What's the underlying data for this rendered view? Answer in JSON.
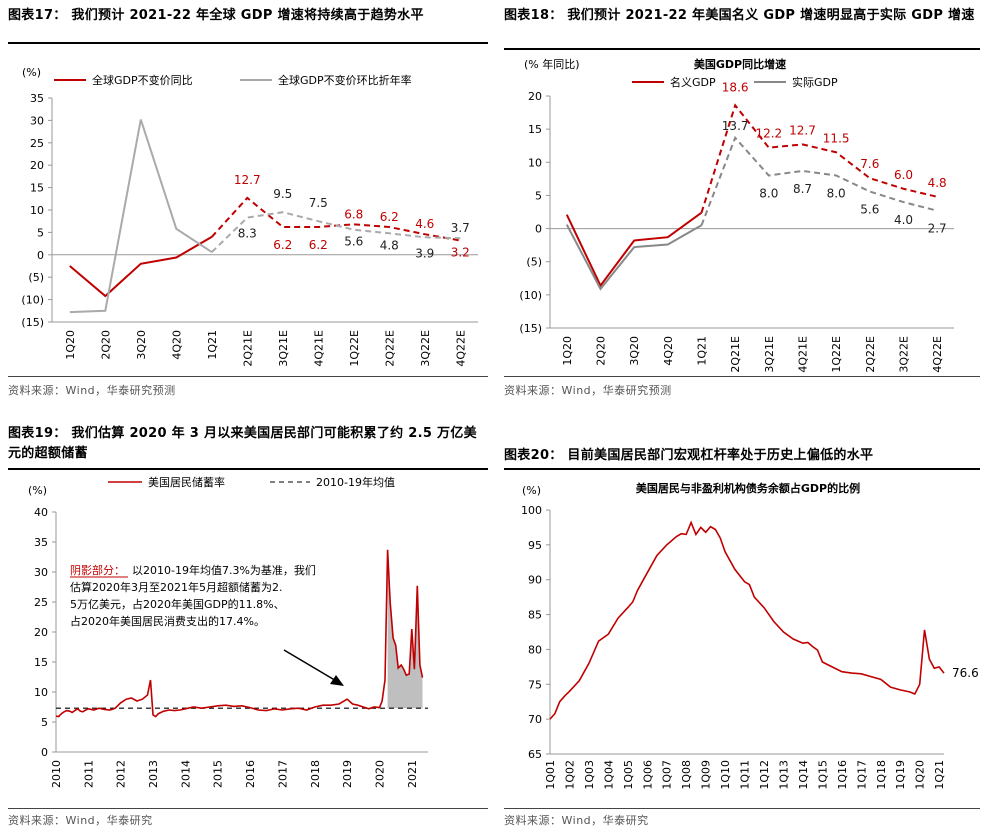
{
  "charts": [
    {
      "title": "图表17：  我们预计 2021-22 年全球 GDP 增速将持续高于趋势水平",
      "source": "资料来源：Wind，华泰研究预测",
      "chart_data": {
        "type": "line",
        "yunit": "(%)",
        "ylim": [
          -15,
          35
        ],
        "yticks": [
          35,
          30,
          25,
          20,
          15,
          10,
          5,
          0,
          -5,
          -10,
          -15
        ],
        "ytick_labels": [
          "35",
          "30",
          "25",
          "20",
          "15",
          "10",
          "5",
          "0",
          "(5)",
          "(10)",
          "(15)"
        ],
        "categories": [
          "1Q20",
          "2Q20",
          "3Q20",
          "4Q20",
          "1Q21",
          "2Q21E",
          "3Q21E",
          "4Q21E",
          "1Q22E",
          "2Q22E",
          "3Q22E",
          "4Q22E"
        ],
        "legend_position": "top",
        "series": [
          {
            "name": "全球GDP不变价同比",
            "color": "#c00000",
            "values": [
              -2.5,
              -9.2,
              -2.0,
              -0.6,
              4.0,
              12.7,
              6.2,
              6.2,
              6.8,
              6.2,
              4.6,
              3.2
            ],
            "forecast_from": 4,
            "labels": [
              "",
              "",
              "",
              "",
              "",
              "12.7",
              "6.2",
              "6.2",
              "6.8",
              "6.2",
              "4.6",
              "3.2"
            ],
            "label_dy": [
              0,
              0,
              0,
              0,
              0,
              -18,
              18,
              18,
              -10,
              -10,
              -10,
              12
            ]
          },
          {
            "name": "全球GDP不变价环比折年率",
            "color": "#aaaaaa",
            "values": [
              -12.8,
              -12.5,
              30.2,
              5.8,
              0.6,
              8.3,
              9.5,
              7.5,
              5.6,
              4.8,
              3.9,
              3.7
            ],
            "forecast_from": 4,
            "labels": [
              "",
              "",
              "",
              "",
              "",
              "8.3",
              "9.5",
              "7.5",
              "5.6",
              "4.8",
              "3.9",
              "3.7"
            ],
            "label_dy": [
              0,
              0,
              0,
              0,
              0,
              16,
              -18,
              -18,
              12,
              12,
              16,
              -10
            ]
          }
        ]
      }
    },
    {
      "title": "图表18：  我们预计 2021-22 年美国名义 GDP 增速明显高于实际 GDP 增速",
      "source": "资料来源：Wind，华泰研究预测",
      "chart_data": {
        "type": "line",
        "subtitle": "美国GDP同比增速",
        "yunit": "(% 年同比)",
        "ylim": [
          -15,
          20
        ],
        "yticks": [
          20,
          15,
          10,
          5,
          0,
          -5,
          -10,
          -15
        ],
        "ytick_labels": [
          "20",
          "15",
          "10",
          "5",
          "0",
          "(5)",
          "(10)",
          "(15)"
        ],
        "categories": [
          "1Q20",
          "2Q20",
          "3Q20",
          "4Q20",
          "1Q21",
          "2Q21E",
          "3Q21E",
          "4Q21E",
          "1Q22E",
          "2Q22E",
          "3Q22E",
          "4Q22E"
        ],
        "legend_position": "top",
        "series": [
          {
            "name": "名义GDP",
            "color": "#c00000",
            "values": [
              2.1,
              -8.6,
              -1.8,
              -1.3,
              2.4,
              18.6,
              12.2,
              12.7,
              11.5,
              7.6,
              6.0,
              4.8
            ],
            "forecast_from": 4,
            "labels": [
              "",
              "",
              "",
              "",
              "",
              "18.6",
              "12.2",
              "12.7",
              "11.5",
              "7.6",
              "6.0",
              "4.8"
            ],
            "label_dy": [
              0,
              0,
              0,
              0,
              0,
              -18,
              -14,
              -14,
              -14,
              -14,
              -14,
              -14
            ]
          },
          {
            "name": "实际GDP",
            "color": "#888888",
            "values": [
              0.6,
              -9.1,
              -2.8,
              -2.4,
              0.5,
              13.7,
              8.0,
              8.7,
              8.0,
              5.6,
              4.0,
              2.7
            ],
            "forecast_from": 4,
            "labels": [
              "",
              "",
              "",
              "",
              "",
              "13.7",
              "8.0",
              "8.7",
              "8.0",
              "5.6",
              "4.0",
              "2.7"
            ],
            "label_dy": [
              0,
              0,
              0,
              0,
              0,
              -12,
              18,
              18,
              18,
              18,
              18,
              18
            ]
          }
        ]
      }
    },
    {
      "title": "图表19：  我们估算 2020 年 3 月以来美国居民部门可能积累了约 2.5 万亿美元的超额储蓄",
      "source": "资料来源：Wind，华泰研究",
      "chart_data": {
        "type": "line",
        "yunit": "(%)",
        "ylim": [
          0,
          40
        ],
        "yticks": [
          40,
          35,
          30,
          25,
          20,
          15,
          10,
          5,
          0
        ],
        "xlim": [
          2010,
          2021.5
        ],
        "xticks": [
          "2010",
          "2011",
          "2012",
          "2013",
          "2014",
          "2015",
          "2016",
          "2017",
          "2018",
          "2019",
          "2020",
          "2021"
        ],
        "legend_position": "top",
        "mean_label": "2010-19年均值",
        "mean_value": 7.3,
        "series": [
          {
            "name": "美国居民储蓄率",
            "color": "#c00000",
            "x": [
              2010.0,
              2010.08,
              2010.17,
              2010.25,
              2010.33,
              2010.42,
              2010.5,
              2010.58,
              2010.67,
              2010.75,
              2010.83,
              2010.92,
              2011.0,
              2011.17,
              2011.33,
              2011.5,
              2011.67,
              2011.83,
              2012.0,
              2012.17,
              2012.33,
              2012.5,
              2012.67,
              2012.83,
              2012.92,
              2013.0,
              2013.08,
              2013.17,
              2013.33,
              2013.5,
              2013.67,
              2013.83,
              2014.0,
              2014.25,
              2014.5,
              2014.75,
              2015.0,
              2015.25,
              2015.5,
              2015.75,
              2016.0,
              2016.25,
              2016.5,
              2016.75,
              2017.0,
              2017.25,
              2017.5,
              2017.75,
              2018.0,
              2018.25,
              2018.5,
              2018.75,
              2019.0,
              2019.17,
              2019.33,
              2019.5,
              2019.67,
              2019.83,
              2020.0,
              2020.08,
              2020.17,
              2020.25,
              2020.33,
              2020.42,
              2020.5,
              2020.58,
              2020.67,
              2020.75,
              2020.83,
              2020.92,
              2021.0,
              2021.08,
              2021.17,
              2021.25,
              2021.33
            ],
            "values": [
              6.0,
              5.9,
              6.4,
              6.7,
              6.9,
              6.8,
              6.6,
              6.9,
              7.2,
              6.8,
              6.7,
              7.0,
              7.2,
              7.0,
              7.3,
              7.1,
              7.0,
              7.3,
              8.2,
              8.8,
              9.0,
              8.5,
              8.8,
              9.5,
              12.0,
              6.2,
              5.9,
              6.4,
              6.8,
              7.0,
              6.9,
              7.0,
              7.2,
              7.5,
              7.3,
              7.5,
              7.7,
              7.8,
              7.6,
              7.7,
              7.4,
              7.0,
              6.9,
              7.2,
              7.0,
              7.2,
              7.3,
              7.0,
              7.5,
              7.8,
              7.8,
              8.0,
              8.8,
              8.0,
              7.8,
              7.5,
              7.2,
              7.5,
              7.4,
              8.5,
              12.0,
              33.7,
              24.9,
              19.0,
              17.8,
              14.0,
              14.5,
              13.8,
              12.8,
              13.0,
              20.5,
              13.8,
              27.7,
              14.5,
              12.4
            ]
          }
        ],
        "shaded_label": "阴影部分：",
        "annotation": "以2010-19年均值7.3%为基准，我们估算2020年3月至2021年5月超额储蓄为2.5万亿美元，占2020年美国GDP的11.8%、占2020年美国居民消费支出的17.4%。"
      }
    },
    {
      "title": "图表20：  目前美国居民部门宏观杠杆率处于历史上偏低的水平",
      "source": "资料来源：Wind，华泰研究",
      "chart_data": {
        "type": "line",
        "subtitle": "美国居民与非盈利机构债务余额占GDP的比例",
        "yunit": "(%)",
        "ylim": [
          65,
          100
        ],
        "yticks": [
          100,
          95,
          90,
          85,
          80,
          75,
          70,
          65
        ],
        "xlim": [
          2001,
          2021.25
        ],
        "xticks": [
          "1Q01",
          "1Q02",
          "1Q03",
          "1Q04",
          "1Q05",
          "1Q06",
          "1Q07",
          "1Q08",
          "1Q09",
          "1Q10",
          "1Q11",
          "1Q12",
          "1Q13",
          "1Q14",
          "1Q15",
          "1Q16",
          "1Q17",
          "1Q18",
          "1Q19",
          "1Q20",
          "1Q21"
        ],
        "end_label": "76.6",
        "series": [
          {
            "name": "美国居民与非盈利机构债务余额占GDP的比例",
            "color": "#c00000",
            "x": [
              2001.0,
              2001.25,
              2001.5,
              2001.75,
              2002.0,
              2002.5,
              2003.0,
              2003.5,
              2004.0,
              2004.5,
              2005.0,
              2005.25,
              2005.5,
              2006.0,
              2006.5,
              2007.0,
              2007.5,
              2007.75,
              2008.0,
              2008.25,
              2008.5,
              2008.75,
              2009.0,
              2009.25,
              2009.5,
              2009.75,
              2010.0,
              2010.5,
              2011.0,
              2011.25,
              2011.5,
              2012.0,
              2012.5,
              2013.0,
              2013.5,
              2014.0,
              2014.25,
              2014.5,
              2014.75,
              2015.0,
              2015.5,
              2016.0,
              2016.5,
              2017.0,
              2017.5,
              2018.0,
              2018.5,
              2019.0,
              2019.5,
              2019.75,
              2020.0,
              2020.25,
              2020.5,
              2020.75,
              2021.0,
              2021.25
            ],
            "values": [
              70.0,
              70.8,
              72.5,
              73.3,
              74.0,
              75.5,
              78.0,
              81.2,
              82.2,
              84.5,
              86.0,
              86.8,
              88.5,
              91.0,
              93.5,
              95.0,
              96.2,
              96.6,
              96.5,
              98.2,
              96.5,
              97.5,
              96.8,
              97.6,
              97.2,
              96.0,
              94.0,
              91.5,
              89.7,
              89.3,
              87.5,
              86.0,
              84.0,
              82.5,
              81.5,
              80.9,
              81.0,
              80.4,
              79.9,
              78.2,
              77.5,
              76.8,
              76.6,
              76.5,
              76.1,
              75.7,
              74.6,
              74.2,
              73.9,
              73.6,
              75.0,
              82.8,
              78.6,
              77.3,
              77.5,
              76.6
            ]
          }
        ]
      }
    }
  ]
}
